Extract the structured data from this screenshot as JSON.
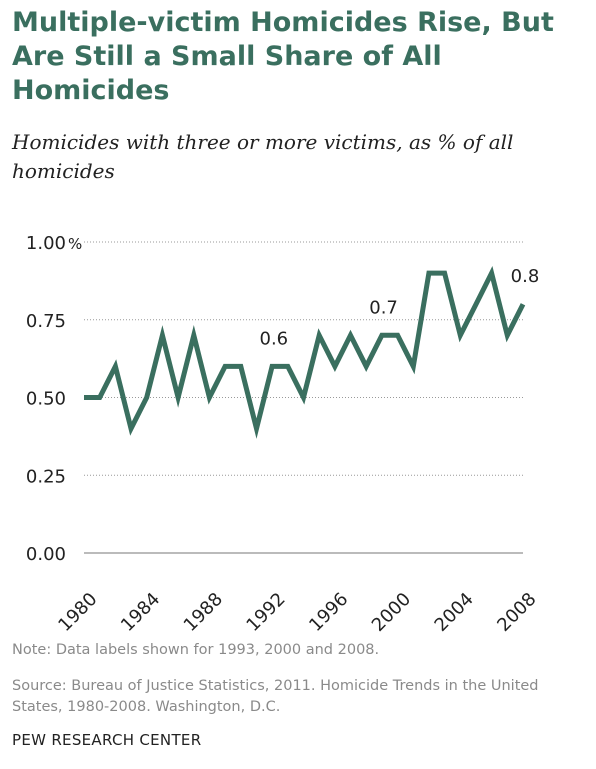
{
  "header": {
    "title": "Multiple-victim Homicides Rise, But Are Still a Small Share of All Homicides",
    "subtitle": "Homicides with three or more victims, as % of all homicides"
  },
  "footer": {
    "note": "Note: Data labels shown for 1993, 2000 and 2008.",
    "source": "Source: Bureau of Justice Statistics, 2011. Homicide Trends in the United States, 1980-2008. Washington, D.C.",
    "brand": "PEW RESEARCH CENTER"
  },
  "colors": {
    "line": "#3a6f5f",
    "title": "#3a6f5f",
    "grid": "#999999"
  },
  "chart_data": {
    "type": "line",
    "title": "Multiple-victim Homicides Rise, But Are Still a Small Share of All Homicides",
    "subtitle": "Homicides with three or more victims, as % of all homicides",
    "xlabel": "",
    "ylabel": "",
    "x": [
      1980,
      1981,
      1982,
      1983,
      1984,
      1985,
      1986,
      1987,
      1988,
      1989,
      1990,
      1991,
      1992,
      1993,
      1994,
      1995,
      1996,
      1997,
      1998,
      1999,
      2000,
      2001,
      2002,
      2003,
      2004,
      2005,
      2006,
      2007,
      2008
    ],
    "series": [
      {
        "values": [
          0.5,
          0.5,
          0.6,
          0.4,
          0.5,
          0.7,
          0.5,
          0.7,
          0.5,
          0.6,
          0.6,
          0.4,
          0.6,
          0.6,
          0.5,
          0.7,
          0.6,
          0.7,
          0.6,
          0.7,
          0.7,
          0.6,
          0.9,
          0.9,
          0.7,
          0.8,
          0.9,
          0.7,
          0.8
        ]
      }
    ],
    "xlim": [
      1980,
      2008
    ],
    "ylim": [
      0,
      1
    ],
    "yticks": [
      0,
      0.25,
      0.5,
      0.75,
      1.0
    ],
    "ytick_labels": [
      "0.00",
      "0.25",
      "0.50",
      "0.75",
      "1.00"
    ],
    "y_unit": "%",
    "xticks": [
      1980,
      1984,
      1988,
      1992,
      1996,
      2000,
      2004,
      2008
    ],
    "xtick_labels": [
      "1980",
      "1984",
      "1988",
      "1992",
      "1996",
      "2000",
      "2004",
      "2008"
    ],
    "data_labels": [
      {
        "x": 1993,
        "y": 0.6,
        "text": "0.6"
      },
      {
        "x": 2000,
        "y": 0.7,
        "text": "0.7"
      },
      {
        "x": 2008,
        "y": 0.8,
        "text": "0.8"
      }
    ],
    "grid": "horizontal dotted",
    "legend": "none"
  }
}
